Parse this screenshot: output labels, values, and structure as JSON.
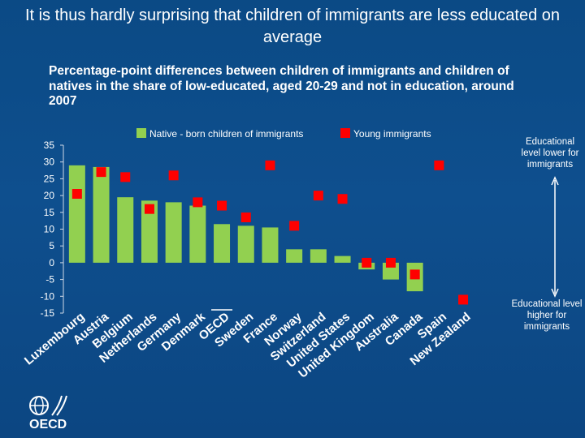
{
  "title": "It is thus hardly surprising that children of immigrants are less educated on average",
  "subtitle": "Percentage-point differences between children of immigrants and children of natives in the share of low-educated, aged 20-29 and not in education, around 2007",
  "legend": {
    "native_born": "Native - born children of immigrants",
    "young_immigrants": "Young immigrants"
  },
  "notes": {
    "top": "Educational level lower for immigrants",
    "bottom": "Educational level higher for immigrants"
  },
  "logo_text": "OECD",
  "colors": {
    "bar": "#92d050",
    "marker": "#ff0000",
    "background": "#0e4f8e"
  },
  "chart_data": {
    "type": "bar",
    "categories": [
      "Luxembourg",
      "Austria",
      "Belgium",
      "Netherlands",
      "Germany",
      "Denmark",
      "OECD",
      "Sweden",
      "France",
      "Norway",
      "Switzerland",
      "United States",
      "United Kingdom",
      "Australia",
      "Canada",
      "Spain",
      "New Zealand"
    ],
    "series": [
      {
        "name": "Native - born children of immigrants",
        "type": "bar",
        "values": [
          29,
          28.5,
          19.5,
          18.5,
          18,
          17,
          11.5,
          11,
          10.5,
          4,
          4,
          2,
          -2,
          -5,
          -8.5,
          null,
          null
        ]
      },
      {
        "name": "Young immigrants",
        "type": "marker",
        "values": [
          20.5,
          27,
          25.5,
          16,
          26,
          18,
          17,
          13.5,
          29,
          11,
          20,
          19,
          0,
          0,
          -3.5,
          29,
          -11
        ]
      }
    ],
    "yticks": [
      35,
      30,
      25,
      20,
      15,
      10,
      5,
      0,
      -5,
      -10,
      -15
    ],
    "ylim": [
      -15,
      35
    ],
    "grid": false,
    "legend_position": "top"
  }
}
